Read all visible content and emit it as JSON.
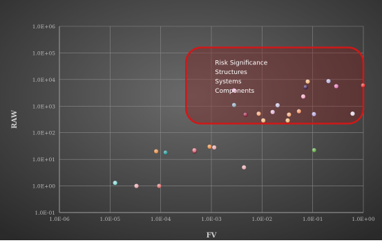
{
  "chart_data": {
    "type": "scatter",
    "title": "",
    "xlabel": "FV",
    "ylabel": "RAW",
    "x_scale": "log",
    "y_scale": "log",
    "xlim": [
      1e-06,
      1
    ],
    "ylim": [
      0.1,
      1000000
    ],
    "x_ticks": [
      "1.0E-06",
      "1.0E-05",
      "1.0E-04",
      "1.0E-03",
      "1.0E-02",
      "1.0E-01",
      "1.0E+00"
    ],
    "y_ticks": [
      "1.0E-01",
      "1.0E+00",
      "1.0E+01",
      "1.0E+02",
      "1.0E+03",
      "1.0E+04",
      "1.0E+05",
      "1.0E+06"
    ],
    "grid": true,
    "colors": {
      "background_outer": "#2a2a2a",
      "background_inner": "#5e5e5e",
      "gridline": "#8a8a8a",
      "highlight_border": "#d01818",
      "highlight_fill": "#8a1a1a"
    },
    "annotation": {
      "lines": [
        "Risk Significance",
        "Structures",
        "Systems",
        "Components"
      ],
      "region": {
        "x_from": 0.000316,
        "x_to": 1,
        "y_from": 220,
        "y_to": 160000
      }
    },
    "points": [
      {
        "x": 1.26e-05,
        "y": 1.3,
        "color": "#7fd3d3"
      },
      {
        "x": 3.32e-05,
        "y": 1.0,
        "color": "#e2a0a8"
      },
      {
        "x": 9.33e-05,
        "y": 1.0,
        "color": "#d96a6a"
      },
      {
        "x": 8.15e-05,
        "y": 20,
        "color": "#e2853a"
      },
      {
        "x": 0.000125,
        "y": 18,
        "color": "#1a8a8a"
      },
      {
        "x": 0.000462,
        "y": 20,
        "color": "#8a2a3a"
      },
      {
        "x": 0.000463,
        "y": 22,
        "color": "#d96a7a"
      },
      {
        "x": 0.000923,
        "y": 30,
        "color": "#e2853a"
      },
      {
        "x": 0.00114,
        "y": 28,
        "color": "#e2a0a8"
      },
      {
        "x": 0.00281,
        "y": 3900,
        "color": "#e088c0"
      },
      {
        "x": 0.00281,
        "y": 1100,
        "color": "#8aa0b4"
      },
      {
        "x": 0.00441,
        "y": 5.0,
        "color": "#e2a0a8"
      },
      {
        "x": 0.00471,
        "y": 480,
        "color": "#8a1a3a"
      },
      {
        "x": 0.00861,
        "y": 520,
        "color": "#f0a070"
      },
      {
        "x": 0.0106,
        "y": 290,
        "color": "#f0b070"
      },
      {
        "x": 0.0162,
        "y": 600,
        "color": "#e0b0d0"
      },
      {
        "x": 0.0203,
        "y": 1080,
        "color": "#c0b8d8"
      },
      {
        "x": 0.0321,
        "y": 290,
        "color": "#f0b070"
      },
      {
        "x": 0.0341,
        "y": 480,
        "color": "#f0a070"
      },
      {
        "x": 0.0536,
        "y": 640,
        "color": "#f09060"
      },
      {
        "x": 0.0651,
        "y": 2300,
        "color": "#f0a0c0"
      },
      {
        "x": 0.0727,
        "y": 5200,
        "color": "#3a1a4a"
      },
      {
        "x": 0.0798,
        "y": 8400,
        "color": "#f0b070"
      },
      {
        "x": 0.106,
        "y": 500,
        "color": "#b0a0d8"
      },
      {
        "x": 0.107,
        "y": 22,
        "color": "#5aa03a"
      },
      {
        "x": 0.205,
        "y": 8700,
        "color": "#b0a8d8"
      },
      {
        "x": 0.292,
        "y": 5600,
        "color": "#e070b0"
      },
      {
        "x": 0.614,
        "y": 520,
        "color": "#e0d0e0"
      },
      {
        "x": 0.989,
        "y": 6000,
        "color": "#e02020"
      }
    ]
  }
}
